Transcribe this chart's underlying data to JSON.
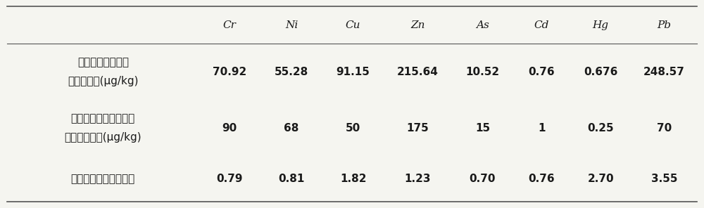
{
  "columns": [
    "",
    "Cr",
    "Ni",
    "Cu",
    "Zn",
    "As",
    "Cd",
    "Hg",
    "Pb"
  ],
  "rows": [
    {
      "label_line1": "沉积物中某重金属",
      "label_line2": "的平均浓度(μg/kg)",
      "values": [
        "70.92",
        "55.28",
        "91.15",
        "215.64",
        "10.52",
        "0.76",
        "0.676",
        "248.57"
      ]
    },
    {
      "label_line1": "未受污染沉积物中某种",
      "label_line2": "重金属的含量(μg/kg)",
      "values": [
        "90",
        "68",
        "50",
        "175",
        "15",
        "1",
        "0.25",
        "70"
      ]
    },
    {
      "label_line1": "某种重金属的污染系数",
      "label_line2": "",
      "values": [
        "0.79",
        "0.81",
        "1.82",
        "1.23",
        "0.70",
        "0.76",
        "2.70",
        "3.55"
      ]
    }
  ],
  "bg_color": "#f5f5f0",
  "text_color": "#1a1a1a",
  "line_color": "#555555",
  "header_font_size": 11,
  "cell_font_size": 11,
  "fig_width": 10.0,
  "fig_height": 2.96
}
